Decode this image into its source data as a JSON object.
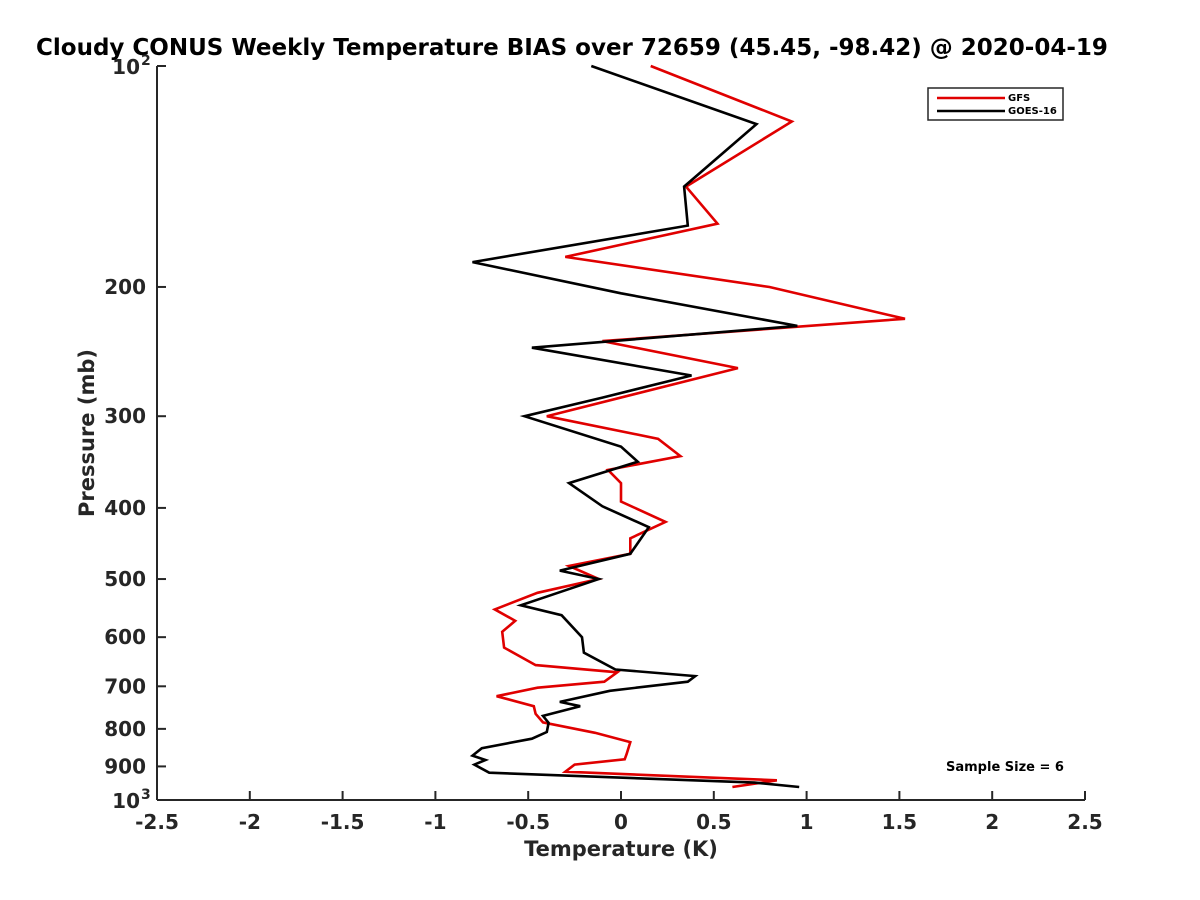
{
  "chart_data": {
    "type": "line",
    "title": "Cloudy CONUS Weekly Temperature BIAS over 72659 (45.45, -98.42) @ 2020-04-19",
    "xlabel": "Temperature (K)",
    "ylabel": "Pressure (mb)",
    "xlim": [
      -2.5,
      2.5
    ],
    "ylim": [
      100,
      1000
    ],
    "y_scale": "log",
    "y_reversed": true,
    "x_ticks": [
      "-2.5",
      "-2",
      "-1.5",
      "-1",
      "-0.5",
      "0",
      "0.5",
      "1",
      "1.5",
      "2",
      "2.5"
    ],
    "y_ticks": [
      {
        "base": "10",
        "exp": "2",
        "value": 100
      },
      {
        "label": "200",
        "value": 200
      },
      {
        "label": "300",
        "value": 300
      },
      {
        "label": "400",
        "value": 400
      },
      {
        "label": "500",
        "value": 500
      },
      {
        "label": "600",
        "value": 600
      },
      {
        "label": "700",
        "value": 700
      },
      {
        "label": "800",
        "value": 800
      },
      {
        "label": "900",
        "value": 900
      },
      {
        "base": "10",
        "exp": "3",
        "value": 1000
      }
    ],
    "legend_position": "top-right",
    "annotation": "Sample Size = 6",
    "series": [
      {
        "name": "GFS",
        "color": "#e00000",
        "points": [
          [
            0.16,
            100
          ],
          [
            0.92,
            119
          ],
          [
            0.35,
            146
          ],
          [
            0.52,
            164
          ],
          [
            -0.3,
            182
          ],
          [
            0.8,
            200
          ],
          [
            1.53,
            221
          ],
          [
            -0.1,
            237
          ],
          [
            0.63,
            258
          ],
          [
            -0.4,
            300
          ],
          [
            0.2,
            322
          ],
          [
            0.32,
            340
          ],
          [
            -0.07,
            355
          ],
          [
            0,
            370
          ],
          [
            0,
            392
          ],
          [
            0.24,
            418
          ],
          [
            0.05,
            440
          ],
          [
            0.05,
            462
          ],
          [
            -0.28,
            480
          ],
          [
            -0.12,
            500
          ],
          [
            -0.45,
            522
          ],
          [
            -0.68,
            550
          ],
          [
            -0.57,
            570
          ],
          [
            -0.64,
            590
          ],
          [
            -0.63,
            620
          ],
          [
            -0.46,
            655
          ],
          [
            -0.02,
            670
          ],
          [
            -0.09,
            690
          ],
          [
            -0.45,
            703
          ],
          [
            -0.67,
            722
          ],
          [
            -0.47,
            745
          ],
          [
            -0.46,
            763
          ],
          [
            -0.42,
            784
          ],
          [
            -0.14,
            810
          ],
          [
            0.05,
            834
          ],
          [
            0.03,
            866
          ],
          [
            0.02,
            880
          ],
          [
            -0.25,
            895
          ],
          [
            -0.3,
            915
          ],
          [
            0.84,
            940
          ],
          [
            0.6,
            960
          ]
        ]
      },
      {
        "name": "GOES-16",
        "color": "#000000",
        "points": [
          [
            -0.16,
            100
          ],
          [
            0.73,
            120
          ],
          [
            0.34,
            146
          ],
          [
            0.36,
            165
          ],
          [
            -0.8,
            185
          ],
          [
            0,
            204
          ],
          [
            0.95,
            226
          ],
          [
            -0.48,
            242
          ],
          [
            0.38,
            264
          ],
          [
            -0.1,
            283
          ],
          [
            -0.52,
            300
          ],
          [
            0,
            330
          ],
          [
            0.09,
            346
          ],
          [
            -0.28,
            370
          ],
          [
            -0.1,
            398
          ],
          [
            0.15,
            425
          ],
          [
            0.05,
            462
          ],
          [
            -0.33,
            487
          ],
          [
            -0.12,
            500
          ],
          [
            -0.3,
            518
          ],
          [
            -0.54,
            543
          ],
          [
            -0.32,
            560
          ],
          [
            -0.21,
            600
          ],
          [
            -0.2,
            630
          ],
          [
            -0.03,
            664
          ],
          [
            0.4,
            678
          ],
          [
            0.36,
            690
          ],
          [
            -0.06,
            710
          ],
          [
            -0.33,
            735
          ],
          [
            -0.22,
            745
          ],
          [
            -0.42,
            768
          ],
          [
            -0.39,
            785
          ],
          [
            -0.4,
            808
          ],
          [
            -0.48,
            825
          ],
          [
            -0.75,
            850
          ],
          [
            -0.8,
            870
          ],
          [
            -0.73,
            882
          ],
          [
            -0.79,
            895
          ],
          [
            -0.71,
            918
          ],
          [
            0.72,
            947
          ],
          [
            0.96,
            960
          ]
        ]
      }
    ]
  }
}
